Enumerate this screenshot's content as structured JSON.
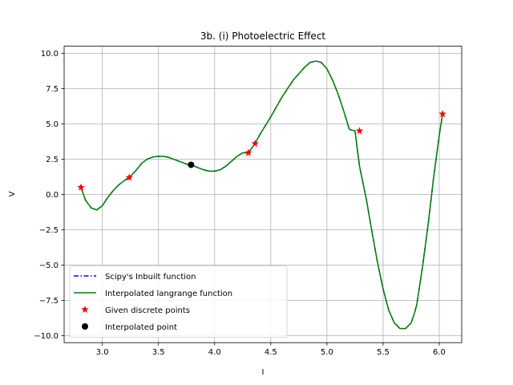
{
  "chart_data": {
    "type": "line",
    "title": "3b. (i) Photoelectric Effect",
    "xlabel": "I",
    "ylabel": "V",
    "xlim": [
      2.66,
      6.2
    ],
    "ylim": [
      -10.5,
      10.5
    ],
    "xticks": [
      3.0,
      3.5,
      4.0,
      4.5,
      5.0,
      5.5,
      6.0
    ],
    "xtick_labels": [
      "3.0",
      "3.5",
      "4.0",
      "4.5",
      "5.0",
      "5.5",
      "6.0"
    ],
    "yticks": [
      -10.0,
      -7.5,
      -5.0,
      -2.5,
      0.0,
      2.5,
      5.0,
      7.5,
      10.0
    ],
    "ytick_labels": [
      "−10.0",
      "−7.5",
      "−5.0",
      "−2.5",
      "0.0",
      "2.5",
      "5.0",
      "7.5",
      "10.0"
    ],
    "grid": true,
    "legend_position": "lower-left",
    "series": [
      {
        "name": "Scipy's Inbuilt function",
        "kind": "line",
        "style": "dashdot",
        "color": "#0000ff",
        "x": [
          2.81,
          2.85,
          2.9,
          2.95,
          3.0,
          3.05,
          3.1,
          3.15,
          3.2,
          3.24,
          3.3,
          3.35,
          3.4,
          3.45,
          3.5,
          3.55,
          3.6,
          3.65,
          3.7,
          3.75,
          3.79,
          3.85,
          3.9,
          3.95,
          4.0,
          4.05,
          4.1,
          4.15,
          4.2,
          4.25,
          4.3,
          4.36,
          4.4,
          4.5,
          4.6,
          4.7,
          4.8,
          4.85,
          4.9,
          4.95,
          5.0,
          5.05,
          5.1,
          5.15,
          5.2,
          5.25,
          5.29,
          5.35,
          5.4,
          5.45,
          5.5,
          5.55,
          5.6,
          5.65,
          5.7,
          5.75,
          5.78,
          5.8,
          5.85,
          5.9,
          5.95,
          6.0,
          6.03
        ],
        "y": [
          0.5,
          -0.4,
          -0.95,
          -1.1,
          -0.8,
          -0.2,
          0.3,
          0.7,
          1.0,
          1.2,
          1.7,
          2.2,
          2.5,
          2.65,
          2.7,
          2.7,
          2.6,
          2.45,
          2.3,
          2.15,
          2.1,
          1.9,
          1.75,
          1.65,
          1.65,
          1.75,
          2.0,
          2.35,
          2.7,
          2.95,
          2.95,
          3.6,
          4.2,
          5.5,
          6.9,
          8.1,
          9.0,
          9.35,
          9.45,
          9.35,
          8.9,
          8.1,
          7.1,
          5.9,
          4.6,
          4.5,
          2.0,
          -0.3,
          -2.6,
          -4.8,
          -6.7,
          -8.2,
          -9.1,
          -9.5,
          -9.5,
          -9.1,
          -8.4,
          -7.8,
          -5.2,
          -2.2,
          1.2,
          4.2,
          5.7
        ]
      },
      {
        "name": "Interpolated langrange function",
        "kind": "line",
        "style": "solid",
        "color": "#008000",
        "x": [
          2.81,
          2.85,
          2.9,
          2.95,
          3.0,
          3.05,
          3.1,
          3.15,
          3.2,
          3.24,
          3.3,
          3.35,
          3.4,
          3.45,
          3.5,
          3.55,
          3.6,
          3.65,
          3.7,
          3.75,
          3.79,
          3.85,
          3.9,
          3.95,
          4.0,
          4.05,
          4.1,
          4.15,
          4.2,
          4.25,
          4.3,
          4.36,
          4.4,
          4.5,
          4.6,
          4.7,
          4.8,
          4.85,
          4.9,
          4.95,
          5.0,
          5.05,
          5.1,
          5.15,
          5.2,
          5.25,
          5.29,
          5.35,
          5.4,
          5.45,
          5.5,
          5.55,
          5.6,
          5.65,
          5.7,
          5.75,
          5.78,
          5.8,
          5.85,
          5.9,
          5.95,
          6.0,
          6.03
        ],
        "y": [
          0.5,
          -0.4,
          -0.95,
          -1.1,
          -0.8,
          -0.2,
          0.3,
          0.7,
          1.0,
          1.2,
          1.7,
          2.2,
          2.5,
          2.65,
          2.7,
          2.7,
          2.6,
          2.45,
          2.3,
          2.15,
          2.1,
          1.9,
          1.75,
          1.65,
          1.65,
          1.75,
          2.0,
          2.35,
          2.7,
          2.95,
          2.95,
          3.6,
          4.2,
          5.5,
          6.9,
          8.1,
          9.0,
          9.35,
          9.45,
          9.35,
          8.9,
          8.1,
          7.1,
          5.9,
          4.6,
          4.5,
          2.0,
          -0.3,
          -2.6,
          -4.8,
          -6.7,
          -8.2,
          -9.1,
          -9.5,
          -9.5,
          -9.1,
          -8.4,
          -7.8,
          -5.2,
          -2.2,
          1.2,
          4.2,
          5.7
        ]
      },
      {
        "name": "Given discrete points",
        "kind": "scatter",
        "marker": "star",
        "color": "#ff0000",
        "x": [
          2.81,
          3.24,
          4.3,
          4.36,
          5.29,
          6.03
        ],
        "y": [
          0.5,
          1.2,
          2.95,
          3.6,
          4.5,
          5.7
        ]
      },
      {
        "name": "Interpolated point",
        "kind": "scatter",
        "marker": "circle",
        "color": "#000000",
        "x": [
          3.79
        ],
        "y": [
          2.1
        ]
      }
    ]
  }
}
